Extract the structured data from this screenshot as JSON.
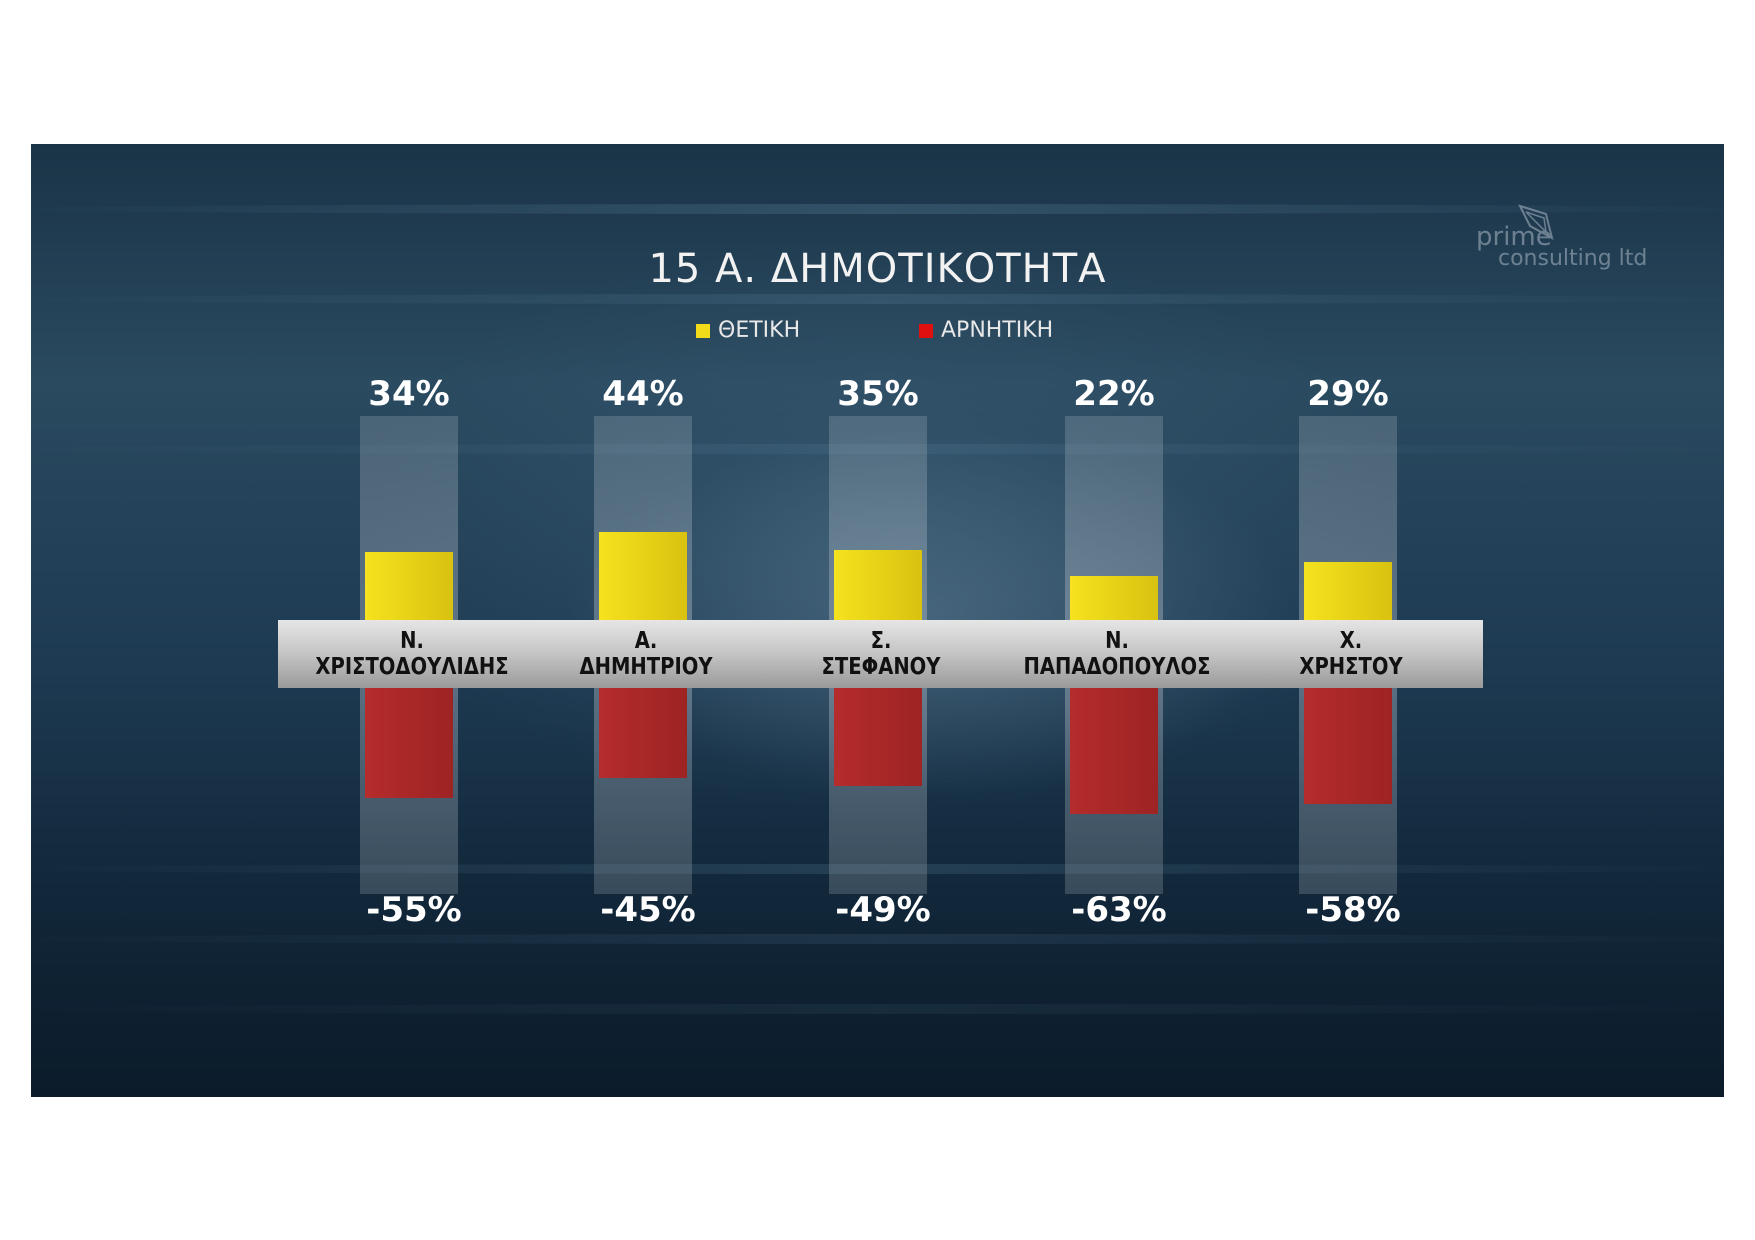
{
  "chart_data": {
    "type": "bar",
    "title": "15 Α. ΔΗΜΟΤΙΚΟΤΗΤΑ",
    "categories": [
      [
        "Ν.",
        "ΧΡΙΣΤΟΔΟΥΛΙΔΗΣ"
      ],
      [
        "Α.",
        "ΔΗΜΗΤΡΙΟΥ"
      ],
      [
        "Σ.",
        "ΣΤΕΦΑΝΟΥ"
      ],
      [
        "Ν.",
        "ΠΑΠΑΔΟΠΟΥΛΟΣ"
      ],
      [
        "Χ.",
        "ΧΡΗΣΤΟΥ"
      ]
    ],
    "series": [
      {
        "name": "ΘΕΤΙΚΗ",
        "color": "#e8d213",
        "values": [
          34,
          44,
          35,
          22,
          29
        ],
        "labels": [
          "34%",
          "44%",
          "35%",
          "22%",
          "29%"
        ]
      },
      {
        "name": "ΑΡΝΗΤΙΚΗ",
        "color": "#b02a2a",
        "values": [
          -55,
          -45,
          -49,
          -63,
          -58
        ],
        "labels": [
          "-55%",
          "-45%",
          "-49%",
          "-63%",
          "-58%"
        ]
      }
    ],
    "ylim": [
      -100,
      100
    ],
    "legend": "top-center",
    "watermark": [
      "prime",
      "consulting ltd"
    ]
  },
  "legend_colors": {
    "positive": "#f2dc1a",
    "negative": "#e01010"
  }
}
